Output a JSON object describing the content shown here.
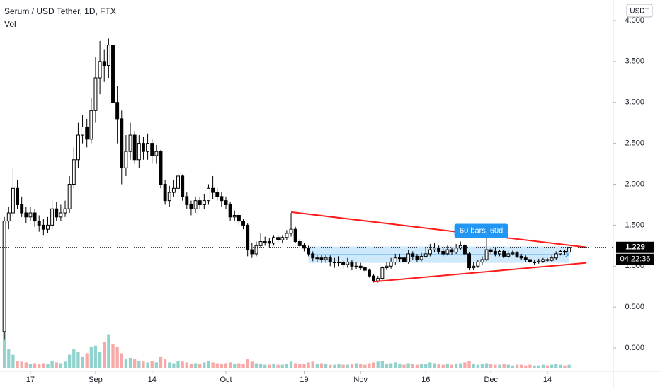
{
  "chart_data": {
    "type": "candlestick",
    "title": "Serum / USD Tether, 1D, FTX",
    "volume_label": "Vol",
    "currency": "USDT",
    "dates": [
      "Aug 11",
      "Aug 12",
      "Aug 13",
      "Aug 14",
      "Aug 15",
      "Aug 16",
      "Aug 17",
      "Aug 18",
      "Aug 19",
      "Aug 20",
      "Aug 21",
      "Aug 22",
      "Aug 23",
      "Aug 24",
      "Aug 25",
      "Aug 26",
      "Aug 27",
      "Aug 28",
      "Aug 29",
      "Aug 30",
      "Aug 31",
      "Sep 1",
      "Sep 2",
      "Sep 3",
      "Sep 4",
      "Sep 5",
      "Sep 6",
      "Sep 7",
      "Sep 8",
      "Sep 9",
      "Sep 10",
      "Sep 11",
      "Sep 12",
      "Sep 13",
      "Sep 14",
      "Sep 15",
      "Sep 16",
      "Sep 17",
      "Sep 18",
      "Sep 19",
      "Sep 20",
      "Sep 21",
      "Sep 22",
      "Sep 23",
      "Sep 24",
      "Sep 25",
      "Sep 26",
      "Sep 27",
      "Sep 28",
      "Sep 29",
      "Sep 30",
      "Oct 1",
      "Oct 2",
      "Oct 3",
      "Oct 4",
      "Oct 5",
      "Oct 6",
      "Oct 7",
      "Oct 8",
      "Oct 9",
      "Oct 10",
      "Oct 11",
      "Oct 12",
      "Oct 13",
      "Oct 14",
      "Oct 15",
      "Oct 16",
      "Oct 17",
      "Oct 18",
      "Oct 19",
      "Oct 20",
      "Oct 21",
      "Oct 22",
      "Oct 23",
      "Oct 24",
      "Oct 25",
      "Oct 26",
      "Oct 27",
      "Oct 28",
      "Oct 29",
      "Oct 30",
      "Oct 31",
      "Nov 1",
      "Nov 2",
      "Nov 3",
      "Nov 4",
      "Nov 5",
      "Nov 6",
      "Nov 7",
      "Nov 8",
      "Nov 9",
      "Nov 10",
      "Nov 11",
      "Nov 12",
      "Nov 13",
      "Nov 14",
      "Nov 15",
      "Nov 16",
      "Nov 17",
      "Nov 18",
      "Nov 19",
      "Nov 20",
      "Nov 21",
      "Nov 22",
      "Nov 23",
      "Nov 24",
      "Nov 25",
      "Nov 26",
      "Nov 27",
      "Nov 28",
      "Nov 29",
      "Nov 30",
      "Dec 1",
      "Dec 2",
      "Dec 3",
      "Dec 4",
      "Dec 5",
      "Dec 6",
      "Dec 7",
      "Dec 8",
      "Dec 9",
      "Dec 10",
      "Dec 11",
      "Dec 12",
      "Dec 13",
      "Dec 14",
      "Dec 15",
      "Dec 16",
      "Dec 17",
      "Dec 18",
      "Dec 19"
    ],
    "open": [
      0.2,
      1.55,
      1.65,
      1.95,
      1.75,
      1.65,
      1.6,
      1.65,
      1.55,
      1.5,
      1.45,
      1.5,
      1.7,
      1.6,
      1.65,
      1.7,
      2.0,
      2.3,
      2.6,
      2.7,
      2.55,
      2.9,
      3.3,
      3.5,
      3.45,
      3.7,
      3.0,
      2.8,
      2.2,
      2.4,
      2.6,
      2.3,
      2.5,
      2.4,
      2.5,
      2.35,
      2.4,
      2.0,
      1.8,
      1.9,
      1.95,
      2.1,
      1.85,
      1.75,
      1.7,
      1.8,
      1.75,
      1.8,
      1.95,
      1.9,
      1.85,
      1.8,
      1.75,
      1.6,
      1.62,
      1.55,
      1.5,
      1.2,
      1.15,
      1.25,
      1.3,
      1.3,
      1.28,
      1.35,
      1.32,
      1.35,
      1.4,
      1.45,
      1.3,
      1.25,
      1.22,
      1.15,
      1.1,
      1.1,
      1.08,
      1.1,
      1.05,
      1.05,
      1.05,
      1.02,
      1.05,
      1.0,
      1.0,
      0.98,
      0.95,
      0.88,
      0.82,
      0.85,
      0.98,
      1.0,
      1.05,
      1.1,
      1.1,
      1.05,
      1.15,
      1.12,
      1.08,
      1.12,
      1.15,
      1.2,
      1.22,
      1.18,
      1.15,
      1.2,
      1.17,
      1.22,
      1.25,
      1.15,
      0.98,
      1.0,
      1.05,
      1.08,
      1.2,
      1.18,
      1.15,
      1.18,
      1.12,
      1.15,
      1.16,
      1.12,
      1.1,
      1.08,
      1.05,
      1.05,
      1.06,
      1.08,
      1.07,
      1.1,
      1.15,
      1.18,
      1.17
    ],
    "high": [
      1.6,
      1.72,
      2.2,
      2.05,
      1.85,
      1.72,
      1.72,
      1.7,
      1.62,
      1.58,
      1.6,
      1.8,
      1.78,
      1.75,
      1.8,
      2.1,
      2.45,
      2.75,
      2.85,
      2.8,
      3.05,
      3.55,
      3.75,
      3.65,
      3.78,
      3.72,
      3.2,
      2.9,
      2.6,
      2.75,
      2.65,
      2.6,
      2.58,
      2.62,
      2.55,
      2.48,
      2.42,
      2.05,
      1.98,
      2.05,
      2.18,
      2.12,
      1.9,
      1.8,
      1.85,
      1.85,
      1.88,
      2.0,
      2.1,
      1.95,
      1.9,
      1.85,
      1.78,
      1.68,
      1.66,
      1.58,
      1.52,
      1.28,
      1.3,
      1.4,
      1.36,
      1.34,
      1.38,
      1.38,
      1.38,
      1.44,
      1.65,
      1.48,
      1.33,
      1.28,
      1.25,
      1.18,
      1.14,
      1.14,
      1.14,
      1.13,
      1.1,
      1.12,
      1.08,
      1.1,
      1.08,
      1.05,
      1.04,
      1.0,
      0.97,
      0.9,
      0.88,
      1.0,
      1.05,
      1.1,
      1.15,
      1.15,
      1.14,
      1.2,
      1.18,
      1.15,
      1.16,
      1.22,
      1.27,
      1.28,
      1.25,
      1.22,
      1.25,
      1.23,
      1.27,
      1.3,
      1.28,
      1.17,
      1.05,
      1.08,
      1.12,
      1.35,
      1.23,
      1.22,
      1.2,
      1.2,
      1.18,
      1.19,
      1.18,
      1.15,
      1.13,
      1.1,
      1.08,
      1.09,
      1.1,
      1.1,
      1.13,
      1.18,
      1.2,
      1.2,
      1.24
    ],
    "low": [
      0.1,
      1.45,
      1.6,
      1.7,
      1.6,
      1.52,
      1.55,
      1.48,
      1.42,
      1.38,
      1.4,
      1.45,
      1.55,
      1.55,
      1.6,
      1.65,
      1.95,
      2.2,
      2.5,
      2.45,
      2.5,
      2.75,
      3.1,
      3.25,
      3.3,
      2.95,
      2.5,
      2.0,
      2.1,
      2.3,
      2.25,
      2.2,
      2.3,
      2.3,
      2.25,
      2.25,
      1.95,
      1.75,
      1.72,
      1.85,
      1.9,
      1.8,
      1.7,
      1.62,
      1.65,
      1.7,
      1.7,
      1.75,
      1.82,
      1.8,
      1.72,
      1.7,
      1.55,
      1.55,
      1.5,
      1.45,
      1.12,
      1.1,
      1.12,
      1.22,
      1.25,
      1.22,
      1.25,
      1.28,
      1.28,
      1.32,
      1.36,
      1.28,
      1.22,
      1.18,
      1.12,
      1.06,
      1.05,
      1.04,
      1.04,
      1.0,
      0.98,
      1.0,
      0.97,
      0.98,
      0.95,
      0.96,
      0.95,
      0.92,
      0.86,
      0.8,
      0.8,
      0.83,
      0.95,
      0.97,
      1.02,
      1.05,
      1.02,
      1.03,
      1.08,
      1.05,
      1.06,
      1.1,
      1.12,
      1.17,
      1.15,
      1.12,
      1.13,
      1.14,
      1.15,
      1.2,
      1.12,
      0.95,
      0.95,
      0.98,
      1.02,
      1.06,
      1.15,
      1.12,
      1.12,
      1.1,
      1.1,
      1.13,
      1.1,
      1.08,
      1.05,
      1.03,
      1.02,
      1.03,
      1.04,
      1.05,
      1.05,
      1.08,
      1.13,
      1.14,
      1.15
    ],
    "close": [
      1.55,
      1.65,
      1.95,
      1.75,
      1.65,
      1.6,
      1.65,
      1.55,
      1.5,
      1.45,
      1.5,
      1.7,
      1.6,
      1.65,
      1.7,
      2.0,
      2.3,
      2.6,
      2.7,
      2.55,
      2.9,
      3.3,
      3.5,
      3.45,
      3.7,
      3.0,
      2.8,
      2.2,
      2.4,
      2.6,
      2.3,
      2.5,
      2.4,
      2.5,
      2.35,
      2.4,
      2.0,
      1.8,
      1.9,
      1.95,
      2.1,
      1.85,
      1.75,
      1.7,
      1.8,
      1.75,
      1.8,
      1.95,
      1.9,
      1.85,
      1.8,
      1.75,
      1.6,
      1.62,
      1.55,
      1.5,
      1.2,
      1.15,
      1.25,
      1.3,
      1.3,
      1.28,
      1.35,
      1.32,
      1.35,
      1.4,
      1.45,
      1.3,
      1.25,
      1.22,
      1.15,
      1.1,
      1.1,
      1.08,
      1.1,
      1.05,
      1.05,
      1.05,
      1.02,
      1.05,
      1.0,
      1.0,
      0.98,
      0.95,
      0.88,
      0.82,
      0.85,
      0.98,
      1.0,
      1.05,
      1.1,
      1.1,
      1.05,
      1.15,
      1.12,
      1.08,
      1.12,
      1.15,
      1.2,
      1.22,
      1.18,
      1.15,
      1.2,
      1.17,
      1.22,
      1.25,
      1.15,
      0.98,
      1.0,
      1.05,
      1.08,
      1.2,
      1.18,
      1.15,
      1.18,
      1.12,
      1.15,
      1.16,
      1.12,
      1.1,
      1.08,
      1.05,
      1.05,
      1.06,
      1.08,
      1.07,
      1.1,
      1.15,
      1.18,
      1.17,
      1.229
    ],
    "volume": [
      60,
      25,
      18,
      10,
      9,
      8,
      6,
      7,
      6,
      7,
      6,
      10,
      8,
      7,
      9,
      18,
      25,
      22,
      15,
      20,
      28,
      30,
      22,
      35,
      45,
      32,
      28,
      20,
      12,
      14,
      12,
      10,
      9,
      8,
      10,
      8,
      15,
      12,
      8,
      7,
      10,
      9,
      8,
      6,
      7,
      6,
      8,
      10,
      8,
      7,
      6,
      7,
      8,
      6,
      7,
      6,
      12,
      9,
      7,
      6,
      5,
      5,
      6,
      5,
      5,
      6,
      9,
      7,
      6,
      6,
      8,
      9,
      6,
      7,
      6,
      5,
      5,
      6,
      5,
      5,
      6,
      7,
      6,
      5,
      7,
      8,
      9,
      10,
      6,
      7,
      8,
      6,
      5,
      7,
      6,
      5,
      6,
      6,
      8,
      7,
      6,
      5,
      6,
      5,
      6,
      7,
      8,
      10,
      6,
      5,
      6,
      7,
      6,
      5,
      5,
      6,
      5,
      4,
      5,
      5,
      4,
      5,
      4,
      4,
      5,
      4,
      5,
      6,
      5,
      4,
      5
    ],
    "up_color": "#ffffff",
    "down_color": "#000000",
    "volume_up_color": "#26a69a",
    "volume_down_color": "#ef5350",
    "xlim": [
      "Aug 10",
      "Dec 29"
    ],
    "xticks": [
      {
        "value": "Aug 17",
        "label": "17"
      },
      {
        "value": "Sep 1",
        "label": "Sep"
      },
      {
        "value": "Sep 14",
        "label": "14"
      },
      {
        "value": "Oct 1",
        "label": "Oct"
      },
      {
        "value": "Oct 19",
        "label": "19"
      },
      {
        "value": "Nov 1",
        "label": "Nov"
      },
      {
        "value": "Nov 16",
        "label": "16"
      },
      {
        "value": "Dec 1",
        "label": "Dec"
      },
      {
        "value": "Dec 14",
        "label": "14"
      }
    ],
    "ylim": [
      -0.25,
      4.25
    ],
    "yticks": [
      {
        "value": 0,
        "label": "0.000"
      },
      {
        "value": 0.5,
        "label": "0.500"
      },
      {
        "value": 1,
        "label": "1.000"
      },
      {
        "value": 1.5,
        "label": "1.500"
      },
      {
        "value": 2,
        "label": "2.000"
      },
      {
        "value": 2.5,
        "label": "2.500"
      },
      {
        "value": 3,
        "label": "3.000"
      },
      {
        "value": 3.5,
        "label": "3.500"
      },
      {
        "value": 4,
        "label": "4.000"
      }
    ],
    "volume_ylim": [
      0,
      65
    ],
    "last_price": 1.229,
    "countdown": "04:22:36",
    "trend_lines": [
      {
        "color": "#ff1a1a",
        "points": [
          {
            "date": "Oct 16",
            "value": 1.66
          },
          {
            "date": "Dec 23",
            "value": 1.23
          }
        ]
      },
      {
        "color": "#ff1a1a",
        "points": [
          {
            "date": "Nov 4",
            "value": 0.81
          },
          {
            "date": "Dec 23",
            "value": 1.04
          }
        ]
      }
    ],
    "range_box": {
      "start": "Oct 20",
      "end": "Dec 19",
      "top": 1.24,
      "bottom": 1.04,
      "label": "60 bars, 60d",
      "color": "#2196f3"
    }
  }
}
